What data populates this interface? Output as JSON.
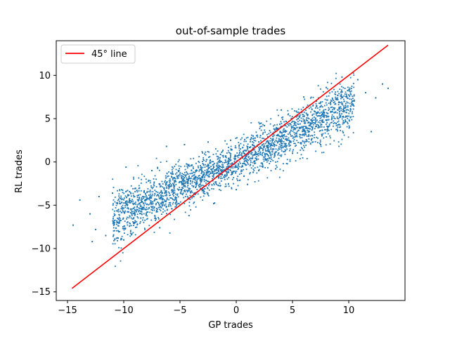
{
  "chart_data": {
    "type": "scatter",
    "title": "out-of-sample trades",
    "xlabel": "GP trades",
    "ylabel": "RL trades",
    "xlim": [
      -16,
      15
    ],
    "ylim": [
      -16,
      14
    ],
    "xticks": [
      -15,
      -10,
      -5,
      0,
      5,
      10
    ],
    "yticks": [
      -15,
      -10,
      -5,
      0,
      5,
      10
    ],
    "xtick_labels": [
      "−15",
      "−10",
      "−5",
      "0",
      "5",
      "10"
    ],
    "ytick_labels": [
      "−15",
      "−10",
      "−5",
      "0",
      "5",
      "10"
    ],
    "grid": false,
    "legend": {
      "placement": "top-left",
      "entries": [
        "45° line"
      ]
    },
    "series": [
      {
        "type": "scatter",
        "color": "#1f77b4",
        "points": [
          [
            -14.5,
            -7.3
          ],
          [
            -13.9,
            -4.4
          ],
          [
            -12.5,
            -7.8
          ],
          [
            -12.8,
            -9.2
          ],
          [
            -13.0,
            -6.0
          ],
          [
            -12.2,
            -4.0
          ],
          [
            -11.6,
            -8.5
          ],
          [
            -11.0,
            -3.6
          ],
          [
            -10.5,
            -8.8
          ],
          [
            -10.0,
            -9.0
          ],
          [
            -9.8,
            -0.6
          ],
          [
            -9.5,
            -4.5
          ],
          [
            -9.0,
            -7.0
          ],
          [
            -8.6,
            -3.0
          ],
          [
            -8.0,
            -5.5
          ],
          [
            -7.5,
            -1.0
          ],
          [
            -7.0,
            -3.8
          ],
          [
            -6.8,
            -7.6
          ],
          [
            -6.2,
            1.8
          ],
          [
            -5.5,
            -2.2
          ],
          [
            -5.0,
            -5.0
          ],
          [
            -4.6,
            2.0
          ],
          [
            -4.2,
            -6.2
          ],
          [
            -3.6,
            -1.0
          ],
          [
            -3.0,
            -3.0
          ],
          [
            -2.5,
            2.3
          ],
          [
            -2.0,
            -4.8
          ],
          [
            -1.5,
            0.2
          ],
          [
            -1.0,
            -1.5
          ],
          [
            -0.5,
            2.5
          ],
          [
            0.0,
            -3.2
          ],
          [
            0.0,
            0.0
          ],
          [
            0.5,
            1.0
          ],
          [
            1.0,
            -2.6
          ],
          [
            1.5,
            3.0
          ],
          [
            2.0,
            -1.0
          ],
          [
            2.5,
            4.2
          ],
          [
            3.0,
            1.0
          ],
          [
            3.5,
            -0.8
          ],
          [
            4.0,
            6.0
          ],
          [
            4.5,
            2.5
          ],
          [
            5.0,
            1.0
          ],
          [
            5.5,
            5.0
          ],
          [
            6.0,
            7.5
          ],
          [
            6.5,
            3.5
          ],
          [
            7.0,
            5.8
          ],
          [
            7.5,
            2.0
          ],
          [
            8.0,
            8.6
          ],
          [
            8.5,
            5.0
          ],
          [
            9.0,
            3.6
          ],
          [
            9.4,
            9.8
          ],
          [
            9.8,
            7.5
          ],
          [
            10.2,
            5.2
          ],
          [
            10.8,
            9.5
          ],
          [
            11.5,
            8.0
          ],
          [
            12.0,
            3.5
          ],
          [
            12.4,
            7.4
          ],
          [
            13.0,
            9.0
          ],
          [
            13.5,
            8.5
          ]
        ]
      }
    ],
    "reference_line": {
      "name": "45° line",
      "color": "#ff0000",
      "x": [
        -14.6,
        13.5
      ],
      "y": [
        -14.6,
        13.5
      ]
    }
  }
}
